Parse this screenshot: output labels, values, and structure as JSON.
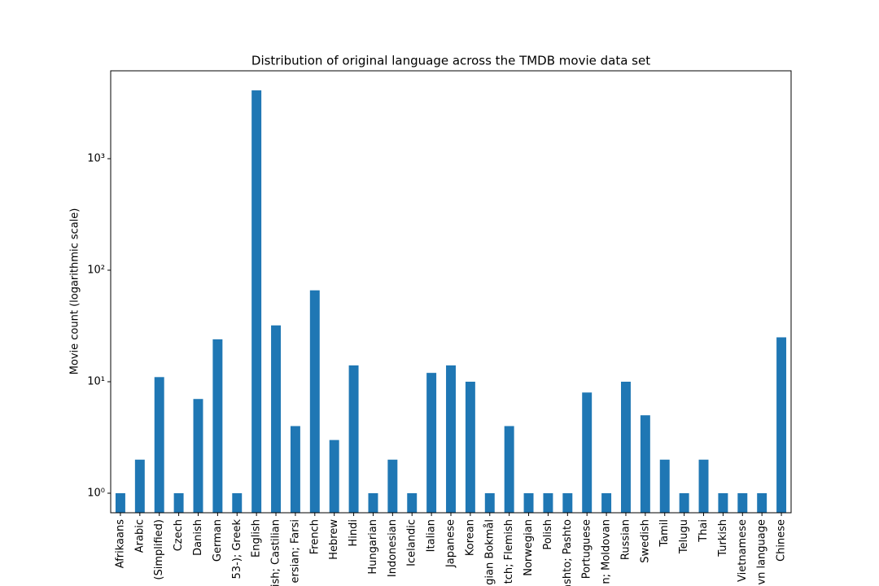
{
  "chart_data": {
    "type": "bar",
    "title": "Distribution of original language across the TMDB movie data set",
    "y_label": "Movie count (logarithmic scale)",
    "categories": [
      "Afrikaans",
      "Arabic",
      "(Simplified)",
      "Czech",
      "Danish",
      "German",
      "53-); Greek",
      "English",
      "ish; Castilian",
      "ersian; Farsi",
      "French",
      "Hebrew",
      "Hindi",
      "Hungarian",
      "Indonesian",
      "Icelandic",
      "Italian",
      "Japanese",
      "Korean",
      "gian Bokmål",
      "tch; Flemish",
      "Norwegian",
      "Polish",
      "ashto; Pashto",
      "Portuguese",
      "n; Moldovan",
      "Russian",
      "Swedish",
      "Tamil",
      "Telugu",
      "Thai",
      "Turkish",
      "Vietnamese",
      "vn language",
      "Chinese"
    ],
    "values": [
      1,
      2,
      11,
      1,
      7,
      24,
      1,
      4100,
      32,
      4,
      66,
      3,
      14,
      1,
      2,
      1,
      12,
      14,
      10,
      1,
      4,
      1,
      1,
      1,
      8,
      1,
      10,
      5,
      2,
      1,
      2,
      1,
      1,
      1,
      25
    ],
    "color": "#1f77b4",
    "yscale": "log",
    "ylim": [
      0.668,
      6140
    ],
    "yticks": [
      {
        "value": 1,
        "label": "10⁰"
      },
      {
        "value": 10,
        "label": "10¹"
      },
      {
        "value": 100,
        "label": "10²"
      },
      {
        "value": 1000,
        "label": "10³"
      }
    ]
  }
}
